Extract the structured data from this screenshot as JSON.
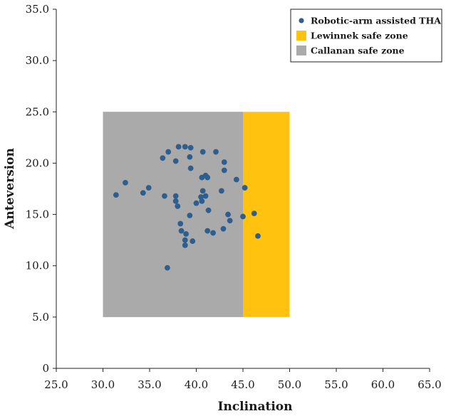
{
  "chart_data": {
    "type": "scatter",
    "title": "",
    "xlabel": "Inclination",
    "ylabel": "Anteversion",
    "xlim": [
      25.0,
      65.0
    ],
    "ylim": [
      0,
      35.0
    ],
    "x_ticks": [
      25.0,
      30.0,
      35.0,
      40.0,
      45.0,
      50.0,
      55.0,
      60.0,
      65.0
    ],
    "x_tick_labels": [
      "25.0",
      "30.0",
      "35.0",
      "40.0",
      "45.0",
      "50.0",
      "55.0",
      "60.0",
      "65.0"
    ],
    "y_ticks": [
      0,
      5.0,
      10.0,
      15.0,
      20.0,
      25.0,
      30.0,
      35.0
    ],
    "y_tick_labels": [
      "0",
      "5.0",
      "10.0",
      "15.0",
      "20.0",
      "25.0",
      "30.0",
      "35.0"
    ],
    "legend_position": "top-right",
    "zones": [
      {
        "name": "Lewinnek safe zone",
        "color": "#FFC20E",
        "x": [
          30.0,
          50.0
        ],
        "y": [
          5.0,
          25.0
        ]
      },
      {
        "name": "Callanan safe zone",
        "color": "#AAAAAA",
        "x": [
          30.0,
          45.0
        ],
        "y": [
          5.0,
          25.0
        ]
      }
    ],
    "series": [
      {
        "name": "Robotic-arm assisted THA",
        "color": "#2E5E8E",
        "points": [
          [
            31.4,
            16.9
          ],
          [
            32.4,
            18.1
          ],
          [
            34.3,
            17.1
          ],
          [
            34.9,
            17.6
          ],
          [
            36.4,
            20.5
          ],
          [
            36.6,
            16.8
          ],
          [
            37.0,
            21.1
          ],
          [
            37.8,
            20.2
          ],
          [
            38.1,
            21.6
          ],
          [
            38.8,
            21.6
          ],
          [
            39.4,
            21.5
          ],
          [
            39.3,
            20.6
          ],
          [
            39.4,
            19.5
          ],
          [
            37.8,
            16.8
          ],
          [
            37.8,
            16.3
          ],
          [
            38.0,
            15.8
          ],
          [
            38.3,
            14.1
          ],
          [
            38.4,
            13.4
          ],
          [
            38.9,
            13.1
          ],
          [
            38.8,
            12.5
          ],
          [
            38.8,
            12.0
          ],
          [
            39.3,
            14.9
          ],
          [
            39.6,
            12.4
          ],
          [
            36.9,
            9.8
          ],
          [
            40.0,
            16.1
          ],
          [
            40.5,
            16.7
          ],
          [
            40.6,
            16.3
          ],
          [
            40.7,
            17.3
          ],
          [
            40.6,
            18.6
          ],
          [
            41.0,
            18.8
          ],
          [
            41.2,
            18.6
          ],
          [
            40.7,
            21.1
          ],
          [
            42.1,
            21.1
          ],
          [
            41.0,
            16.8
          ],
          [
            41.3,
            15.4
          ],
          [
            41.2,
            13.4
          ],
          [
            41.8,
            13.2
          ],
          [
            42.7,
            17.3
          ],
          [
            42.9,
            13.6
          ],
          [
            43.0,
            20.1
          ],
          [
            43.0,
            19.3
          ],
          [
            43.4,
            15.0
          ],
          [
            43.6,
            14.4
          ],
          [
            44.3,
            18.4
          ],
          [
            45.2,
            17.6
          ],
          [
            45.0,
            14.8
          ],
          [
            46.2,
            15.1
          ],
          [
            46.6,
            12.9
          ]
        ]
      }
    ]
  }
}
